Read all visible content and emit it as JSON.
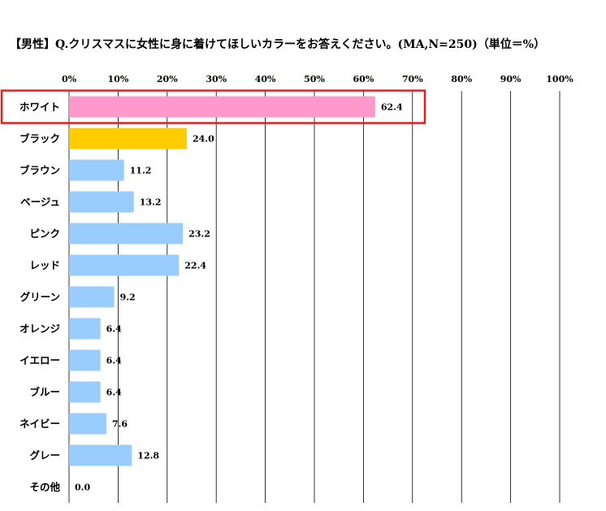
{
  "chart_data": {
    "type": "bar",
    "orientation": "horizontal",
    "title": "【男性】Q.クリスマスに女性に身に着けてほしいカラーをお答えください。(MA,N=250)（単位＝%）",
    "categories": [
      "ホワイト",
      "ブラック",
      "ブラウン",
      "ベージュ",
      "ピンク",
      "レッド",
      "グリーン",
      "オレンジ",
      "イエロー",
      "ブルー",
      "ネイビー",
      "グレー",
      "その他"
    ],
    "values": [
      62.4,
      24.0,
      11.2,
      13.2,
      23.2,
      22.4,
      9.2,
      6.4,
      6.4,
      6.4,
      7.6,
      12.8,
      0.0
    ],
    "value_labels": [
      "62.4",
      "24.0",
      "11.2",
      "13.2",
      "23.2",
      "22.4",
      "9.2",
      "6.4",
      "6.4",
      "6.4",
      "7.6",
      "12.8",
      "0.0"
    ],
    "xlim": [
      0,
      100
    ],
    "xticks": [
      0,
      10,
      20,
      30,
      40,
      50,
      60,
      70,
      80,
      90,
      100
    ],
    "xtick_labels": [
      "0%",
      "10%",
      "20%",
      "30%",
      "40%",
      "50%",
      "60%",
      "70%",
      "80%",
      "90%",
      "100%"
    ],
    "grid": true,
    "legend": "none",
    "colors": {
      "default": "#99ccff",
      "highlight_first": "#ff99cc",
      "highlight_second": "#ffcc00",
      "gridline": "#000000",
      "highlight_box": "#e02020"
    },
    "highlighted_category": "ホワイト"
  }
}
